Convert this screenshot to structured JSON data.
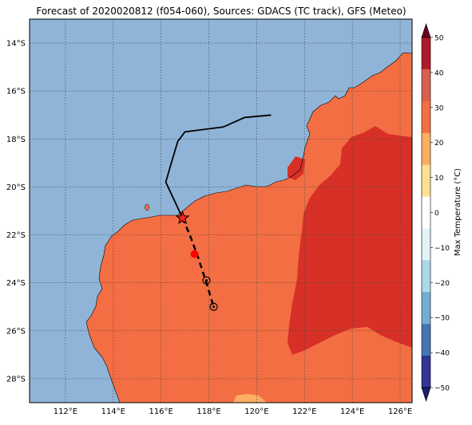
{
  "title": "Forecast of 2020020812 (f054-060), Sources: GDACS (TC track), GFS (Meteo)",
  "colors": {
    "ocean": "#8fb4d8",
    "land_warm": "#f46e43",
    "land_hot": "#d73027",
    "land_mild": "#fdae61",
    "grid": "#444444",
    "track": "#000000",
    "marker_red": "#ff0000"
  },
  "map": {
    "lon_range": [
      110.5,
      126.5
    ],
    "lat_range": [
      -29.0,
      -13.0
    ],
    "lon_tick_labels": [
      "112°E",
      "114°E",
      "116°E",
      "118°E",
      "120°E",
      "122°E",
      "124°E",
      "126°E"
    ],
    "lat_tick_labels": [
      "14°S",
      "16°S",
      "18°S",
      "20°S",
      "22°S",
      "24°S",
      "26°S",
      "28°S"
    ],
    "observed_track": {
      "lons": [
        120.6,
        119.5,
        118.6,
        117.0,
        116.7,
        116.4,
        116.2,
        116.9
      ],
      "lats": [
        -17.0,
        -17.1,
        -17.5,
        -17.7,
        -18.1,
        -19.1,
        -19.8,
        -21.3
      ]
    },
    "forecast_track": {
      "lons": [
        116.9,
        117.2,
        117.5,
        117.9,
        118.2
      ],
      "lats": [
        -21.3,
        -22.0,
        -22.8,
        -24.0,
        -25.0
      ]
    },
    "current_position": {
      "lon": 116.9,
      "lat": -21.3
    },
    "forecast_points": [
      {
        "lon": 117.4,
        "lat": -22.8,
        "style": "red"
      },
      {
        "lon": 117.9,
        "lat": -23.9,
        "style": "open"
      },
      {
        "lon": 118.2,
        "lat": -25.0,
        "style": "open"
      }
    ]
  },
  "colorbar": {
    "label": "Max Temperature (°C)",
    "tick_labels": [
      "50",
      "40",
      "30",
      "20",
      "10",
      "0",
      "−10",
      "−20",
      "−30",
      "−40",
      "−50"
    ],
    "colors": [
      "#67001f",
      "#b2182b",
      "#d6604d",
      "#f46e43",
      "#fdae61",
      "#fee090",
      "#ffffff",
      "#e0f3f8",
      "#abd9e9",
      "#74add1",
      "#4575b4",
      "#313695",
      "#1c1c6e"
    ]
  }
}
